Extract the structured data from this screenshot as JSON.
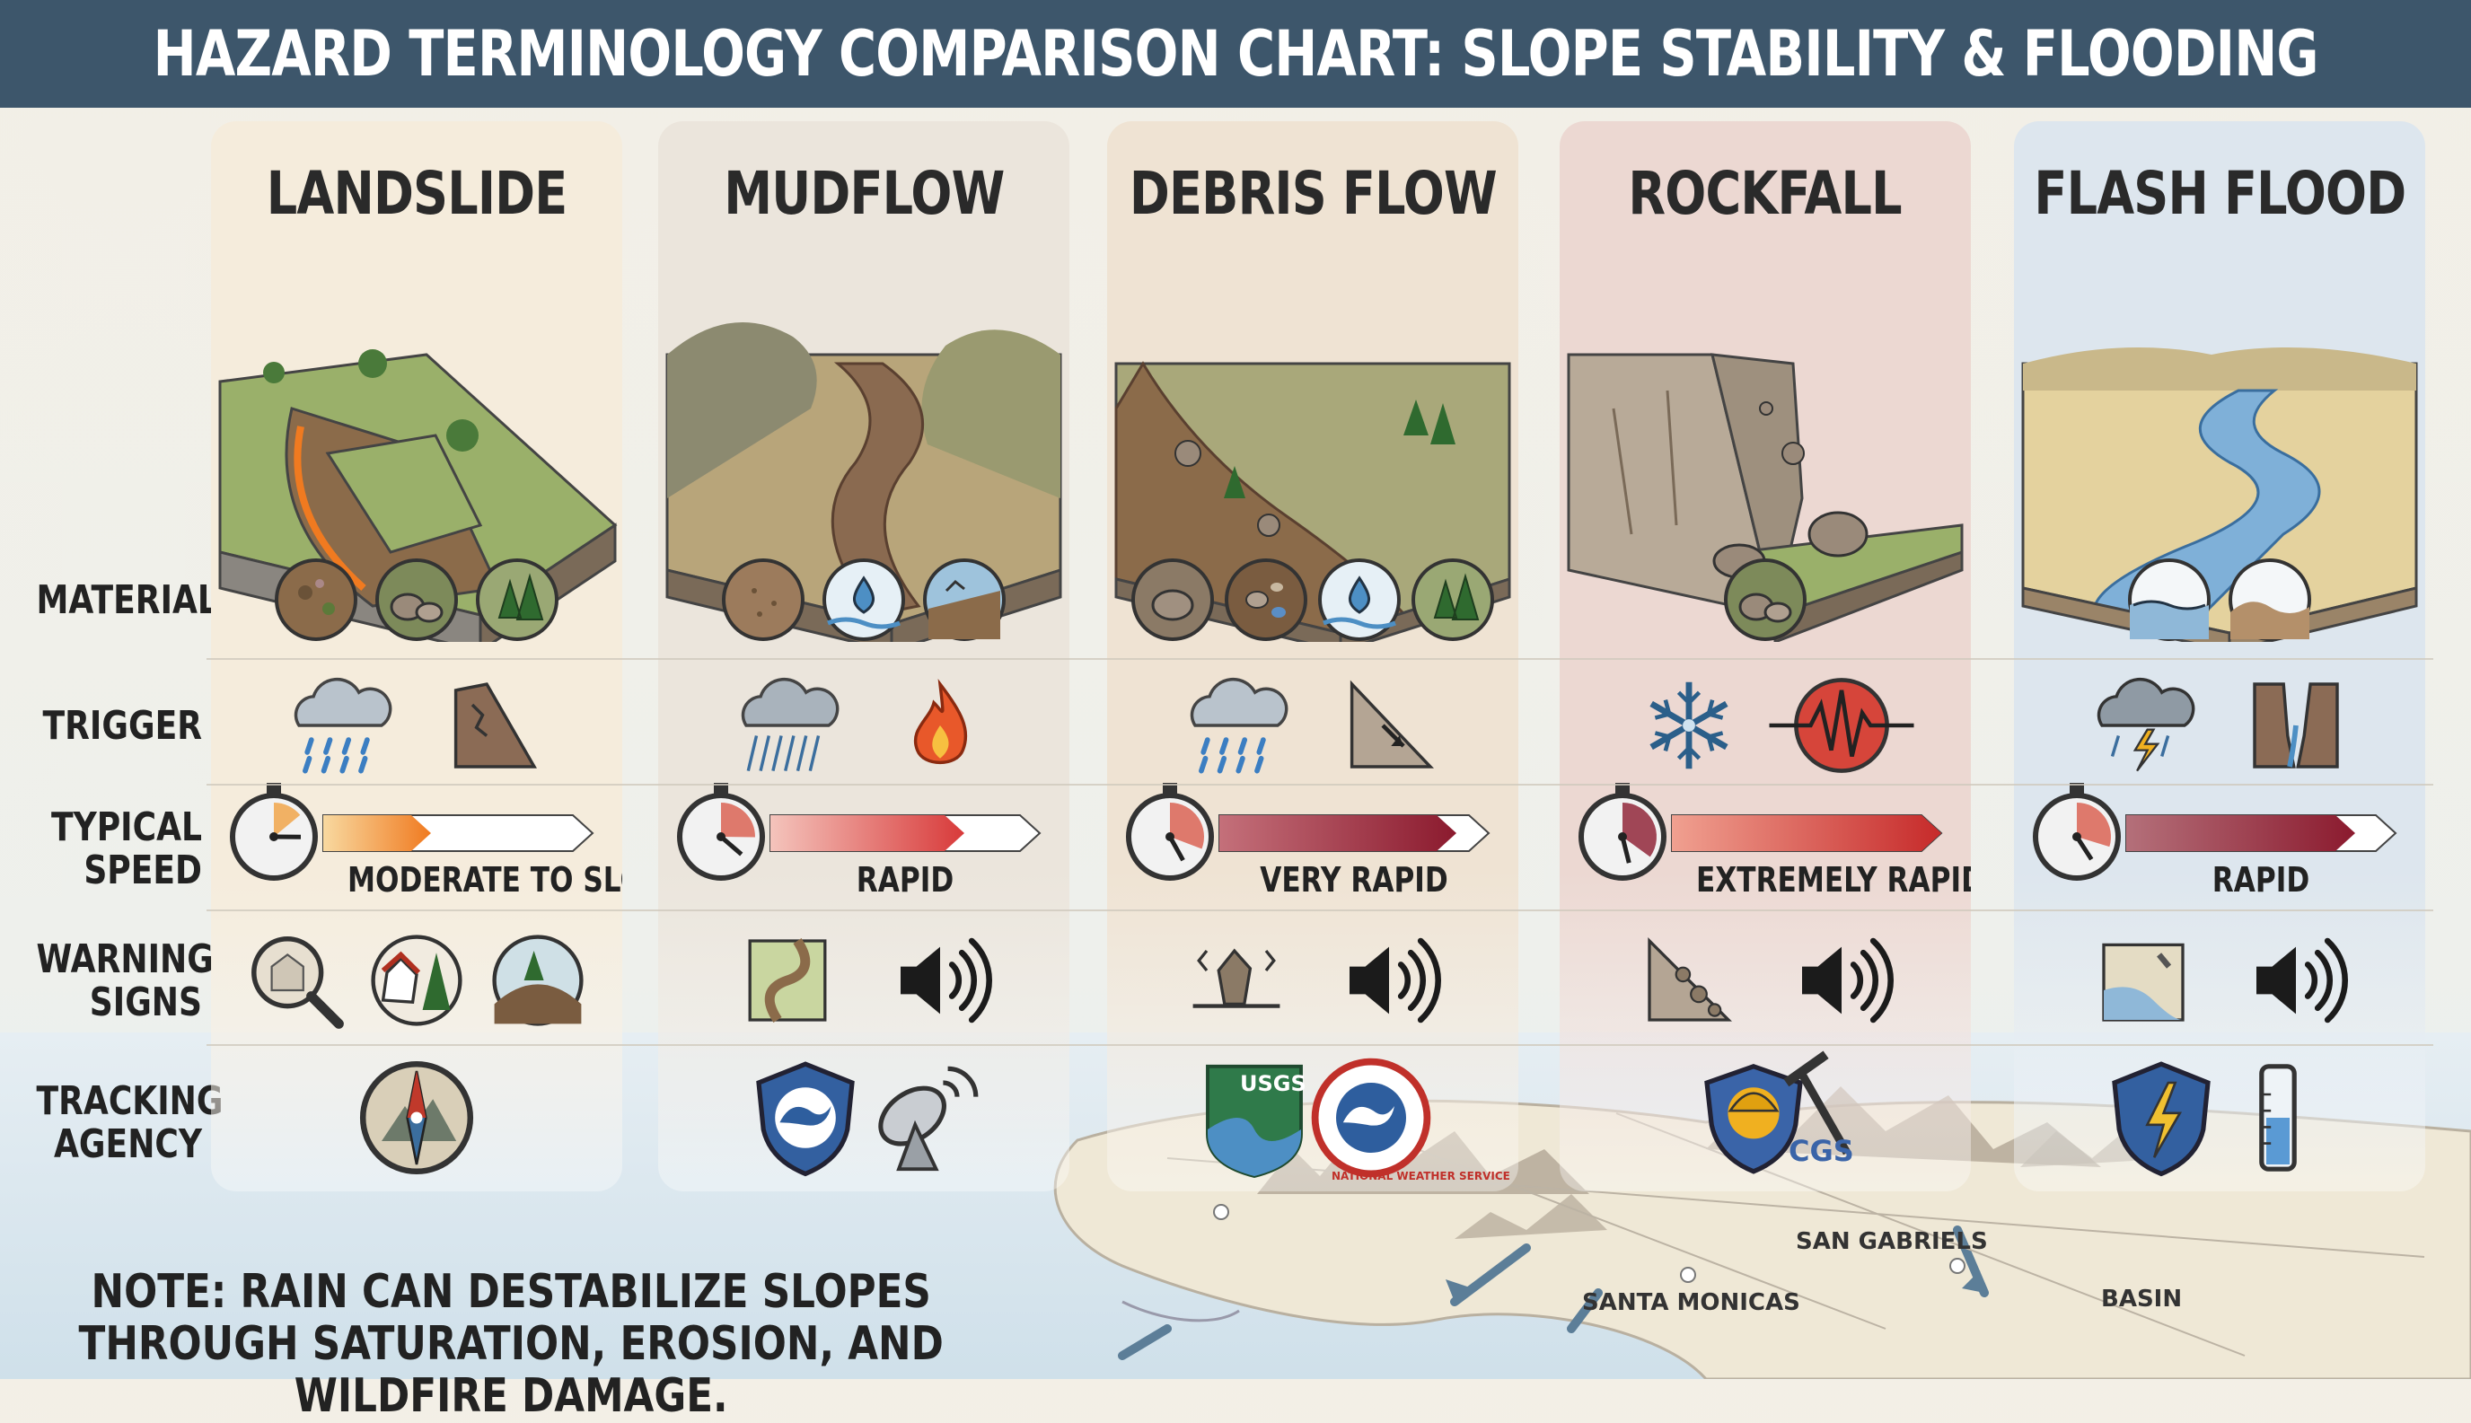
{
  "title": "HAZARD TERMINOLOGY COMPARISON CHART: SLOPE STABILITY & FLOODING",
  "row_labels": {
    "material": "MATERIAL",
    "trigger": "TRIGGER",
    "speed_line1": "TYPICAL",
    "speed_line2": "SPEED",
    "warning_line1": "WARNING",
    "warning_line2": "SIGNS",
    "agency_line1": "TRACKING",
    "agency_line2": "AGENCY"
  },
  "columns": [
    {
      "name": "LANDSLIDE",
      "speed": "MODERATE TO SLOW",
      "speed_fraction": 0.4,
      "bg": "#f5ecdc",
      "material_icons": [
        "soil-rock-icon",
        "boulders-icon",
        "trees-icon"
      ],
      "trigger_icons": [
        "rain-cloud-icon",
        "cracked-slope-icon"
      ],
      "warning_icons": [
        "magnifier-crack-icon",
        "tilted-house-trees-icon",
        "bulging-ground-icon"
      ],
      "agency_icons": [
        "compass-mountain-icon"
      ]
    },
    {
      "name": "MUDFLOW",
      "speed": "RAPID",
      "speed_fraction": 0.72,
      "bg": "#ebe5dc",
      "material_icons": [
        "mud-icon",
        "water-drop-icon",
        "mud-water-icon"
      ],
      "trigger_icons": [
        "heavy-rain-icon",
        "fire-icon"
      ],
      "warning_icons": [
        "channel-landscape-icon",
        "loud-sound-icon"
      ],
      "agency_icons": [
        "weather-shield-icon",
        "satellite-dish-icon"
      ]
    },
    {
      "name": "DEBRIS FLOW",
      "speed": "VERY RAPID",
      "speed_fraction": 0.88,
      "bg": "#efe3d3",
      "material_icons": [
        "rocks-icon",
        "mixed-debris-icon",
        "water-drop-icon",
        "trees-icon"
      ],
      "trigger_icons": [
        "rain-cloud-icon",
        "steep-slope-icon"
      ],
      "warning_icons": [
        "rumbling-ground-icon",
        "loud-sound-icon"
      ],
      "agency_icons": [
        "usgs-logo-icon",
        "nws-logo-icon"
      ],
      "agency_text": [
        "USGS",
        "NATIONAL WEATHER SERVICE"
      ]
    },
    {
      "name": "ROCKFALL",
      "speed": "EXTREMELY RAPID",
      "speed_fraction": 1.0,
      "bg": "#ecd8d2",
      "material_icons": [
        "boulders-icon"
      ],
      "trigger_icons": [
        "snowflake-icon",
        "seismic-icon"
      ],
      "warning_icons": [
        "falling-rocks-icon",
        "loud-sound-icon"
      ],
      "agency_icons": [
        "cgs-logo-icon"
      ],
      "agency_text": [
        "CGS"
      ]
    },
    {
      "name": "FLASH FLOOD",
      "speed": "RAPID",
      "speed_fraction": 0.85,
      "bg": "#dde6ee",
      "material_icons": [
        "water-surface-icon",
        "sediment-icon"
      ],
      "trigger_icons": [
        "storm-cloud-icon",
        "canyon-icon"
      ],
      "warning_icons": [
        "rising-stream-icon",
        "loud-sound-icon"
      ],
      "agency_icons": [
        "lightning-shield-icon",
        "rain-gauge-icon"
      ]
    }
  ],
  "note": "NOTE: RAIN CAN DESTABILIZE SLOPES THROUGH SATURATION, EROSION, AND WILDFIRE DAMAGE.",
  "map_labels": {
    "san_gabriels": "SAN GABRIELS",
    "santa_monicas": "SANTA MONICAS",
    "basin": "BASIN"
  },
  "colors": {
    "title_bar": "#3d566b",
    "speed_slow": "#f0a040",
    "speed_fast": "#8b1a2e"
  }
}
